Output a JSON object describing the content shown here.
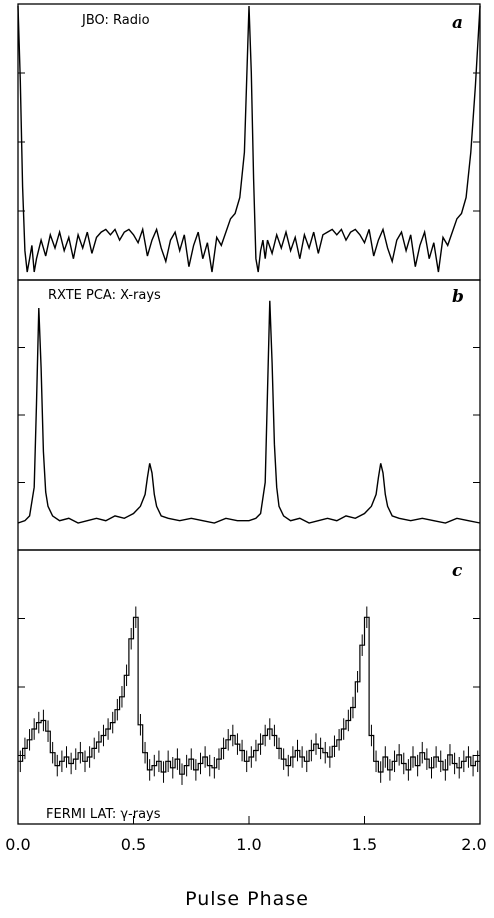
{
  "chart_data": [
    {
      "type": "line",
      "label": "JBO: Radio",
      "panel_tag": "a",
      "xlim": [
        0.0,
        2.0
      ],
      "ylim": [
        0.0,
        1.0
      ],
      "grid": false,
      "series": [
        {
          "x": [
            0.0,
            0.01,
            0.02,
            0.03,
            0.04,
            0.05,
            0.06,
            0.07,
            0.08,
            0.1,
            0.12,
            0.14,
            0.16,
            0.18,
            0.2,
            0.22,
            0.24,
            0.26,
            0.28,
            0.3,
            0.32,
            0.34,
            0.36,
            0.38,
            0.4,
            0.42,
            0.44,
            0.46,
            0.48,
            0.5,
            0.52,
            0.54,
            0.56,
            0.58,
            0.6,
            0.62,
            0.64,
            0.66,
            0.68,
            0.7,
            0.72,
            0.74,
            0.76,
            0.78,
            0.8,
            0.82,
            0.84,
            0.86,
            0.88,
            0.9,
            0.92,
            0.94,
            0.96,
            0.98,
            1.0,
            1.01,
            1.02,
            1.03,
            1.04,
            1.05,
            1.06,
            1.07,
            1.08,
            1.1,
            1.12,
            1.14,
            1.16,
            1.18,
            1.2,
            1.22,
            1.24,
            1.26,
            1.28,
            1.3,
            1.32,
            1.34,
            1.36,
            1.38,
            1.4,
            1.42,
            1.44,
            1.46,
            1.48,
            1.5,
            1.52,
            1.54,
            1.56,
            1.58,
            1.6,
            1.62,
            1.64,
            1.66,
            1.68,
            1.7,
            1.72,
            1.74,
            1.76,
            1.78,
            1.8,
            1.82,
            1.84,
            1.86,
            1.88,
            1.9,
            1.92,
            1.94,
            1.96,
            1.98,
            2.0
          ],
          "y": [
            1.0,
            0.72,
            0.32,
            0.08,
            0.0,
            0.05,
            0.1,
            0.0,
            0.05,
            0.12,
            0.06,
            0.14,
            0.09,
            0.15,
            0.08,
            0.13,
            0.05,
            0.14,
            0.09,
            0.15,
            0.07,
            0.13,
            0.15,
            0.16,
            0.14,
            0.16,
            0.12,
            0.15,
            0.16,
            0.14,
            0.11,
            0.16,
            0.06,
            0.12,
            0.16,
            0.09,
            0.04,
            0.12,
            0.15,
            0.08,
            0.14,
            0.02,
            0.1,
            0.15,
            0.05,
            0.11,
            0.0,
            0.13,
            0.1,
            0.15,
            0.2,
            0.22,
            0.28,
            0.45,
            1.0,
            0.75,
            0.35,
            0.05,
            0.0,
            0.08,
            0.12,
            0.05,
            0.12,
            0.07,
            0.14,
            0.09,
            0.15,
            0.08,
            0.13,
            0.05,
            0.14,
            0.09,
            0.15,
            0.07,
            0.14,
            0.15,
            0.16,
            0.14,
            0.16,
            0.12,
            0.15,
            0.16,
            0.14,
            0.11,
            0.16,
            0.06,
            0.12,
            0.16,
            0.09,
            0.04,
            0.12,
            0.15,
            0.08,
            0.14,
            0.02,
            0.1,
            0.15,
            0.05,
            0.11,
            0.0,
            0.13,
            0.1,
            0.15,
            0.2,
            0.22,
            0.28,
            0.45,
            0.7,
            1.0
          ]
        }
      ]
    },
    {
      "type": "line",
      "label": "RXTE PCA: X-rays",
      "panel_tag": "b",
      "xlim": [
        0.0,
        2.0
      ],
      "ylim": [
        0.0,
        1.0
      ],
      "grid": false,
      "series": [
        {
          "x": [
            0.0,
            0.03,
            0.05,
            0.07,
            0.08,
            0.09,
            0.1,
            0.11,
            0.12,
            0.13,
            0.15,
            0.18,
            0.22,
            0.26,
            0.3,
            0.34,
            0.38,
            0.42,
            0.46,
            0.5,
            0.53,
            0.55,
            0.56,
            0.57,
            0.58,
            0.59,
            0.6,
            0.62,
            0.65,
            0.7,
            0.75,
            0.8,
            0.85,
            0.9,
            0.95,
            1.0,
            1.03,
            1.05,
            1.07,
            1.08,
            1.09,
            1.1,
            1.11,
            1.12,
            1.13,
            1.15,
            1.18,
            1.22,
            1.26,
            1.3,
            1.34,
            1.38,
            1.42,
            1.46,
            1.5,
            1.53,
            1.55,
            1.56,
            1.57,
            1.58,
            1.59,
            1.6,
            1.62,
            1.65,
            1.7,
            1.75,
            1.8,
            1.85,
            1.9,
            1.95,
            2.0
          ],
          "y": [
            0.05,
            0.06,
            0.08,
            0.2,
            0.55,
            0.95,
            0.7,
            0.35,
            0.18,
            0.12,
            0.08,
            0.06,
            0.07,
            0.05,
            0.06,
            0.07,
            0.06,
            0.08,
            0.07,
            0.09,
            0.12,
            0.17,
            0.24,
            0.3,
            0.26,
            0.17,
            0.12,
            0.08,
            0.07,
            0.06,
            0.07,
            0.06,
            0.05,
            0.07,
            0.06,
            0.06,
            0.07,
            0.09,
            0.22,
            0.6,
            0.98,
            0.72,
            0.38,
            0.2,
            0.12,
            0.08,
            0.06,
            0.07,
            0.05,
            0.06,
            0.07,
            0.06,
            0.08,
            0.07,
            0.09,
            0.12,
            0.17,
            0.24,
            0.3,
            0.26,
            0.17,
            0.12,
            0.08,
            0.07,
            0.06,
            0.07,
            0.06,
            0.05,
            0.07,
            0.06,
            0.05
          ]
        }
      ]
    },
    {
      "type": "line",
      "label": "FERMI LAT: γ-rays",
      "panel_tag": "c",
      "xlim": [
        0.0,
        2.0
      ],
      "ylim": [
        0.0,
        1.0
      ],
      "grid": false,
      "series": [
        {
          "x": [
            0.0,
            0.02,
            0.04,
            0.06,
            0.08,
            0.1,
            0.12,
            0.14,
            0.16,
            0.18,
            0.2,
            0.22,
            0.24,
            0.26,
            0.28,
            0.3,
            0.32,
            0.34,
            0.36,
            0.38,
            0.4,
            0.42,
            0.44,
            0.46,
            0.48,
            0.5,
            0.52,
            0.54,
            0.56,
            0.58,
            0.6,
            0.62,
            0.64,
            0.66,
            0.68,
            0.7,
            0.72,
            0.74,
            0.76,
            0.78,
            0.8,
            0.82,
            0.84,
            0.86,
            0.88,
            0.9,
            0.92,
            0.94,
            0.96,
            0.98,
            1.0,
            1.02,
            1.04,
            1.06,
            1.08,
            1.1,
            1.12,
            1.14,
            1.16,
            1.18,
            1.2,
            1.22,
            1.24,
            1.26,
            1.28,
            1.3,
            1.32,
            1.34,
            1.36,
            1.38,
            1.4,
            1.42,
            1.44,
            1.46,
            1.48,
            1.5,
            1.52,
            1.54,
            1.56,
            1.58,
            1.6,
            1.62,
            1.64,
            1.66,
            1.68,
            1.7,
            1.72,
            1.74,
            1.76,
            1.78,
            1.8,
            1.82,
            1.84,
            1.86,
            1.88,
            1.9,
            1.92,
            1.94,
            1.96,
            1.98
          ],
          "y": [
            0.18,
            0.24,
            0.28,
            0.33,
            0.36,
            0.37,
            0.32,
            0.22,
            0.16,
            0.18,
            0.2,
            0.17,
            0.19,
            0.22,
            0.18,
            0.2,
            0.24,
            0.27,
            0.3,
            0.33,
            0.36,
            0.42,
            0.48,
            0.58,
            0.75,
            0.85,
            0.35,
            0.22,
            0.14,
            0.16,
            0.18,
            0.13,
            0.18,
            0.15,
            0.19,
            0.12,
            0.16,
            0.19,
            0.14,
            0.17,
            0.2,
            0.16,
            0.15,
            0.19,
            0.24,
            0.28,
            0.3,
            0.26,
            0.23,
            0.18,
            0.2,
            0.23,
            0.26,
            0.3,
            0.33,
            0.3,
            0.24,
            0.19,
            0.16,
            0.2,
            0.23,
            0.2,
            0.18,
            0.23,
            0.26,
            0.24,
            0.22,
            0.2,
            0.25,
            0.28,
            0.33,
            0.37,
            0.43,
            0.55,
            0.72,
            0.85,
            0.3,
            0.18,
            0.13,
            0.2,
            0.14,
            0.18,
            0.21,
            0.17,
            0.14,
            0.2,
            0.16,
            0.22,
            0.19,
            0.15,
            0.2,
            0.18,
            0.14,
            0.21,
            0.17,
            0.15,
            0.18,
            0.2,
            0.16,
            0.18
          ],
          "error": 0.05
        }
      ]
    }
  ],
  "x_axis": {
    "ticks": [
      0.0,
      0.5,
      1.0,
      1.5,
      2.0
    ],
    "tick_labels": [
      "0.0",
      "0.5",
      "1.0",
      "1.5",
      "2.0"
    ],
    "title": "Pulse Phase"
  }
}
